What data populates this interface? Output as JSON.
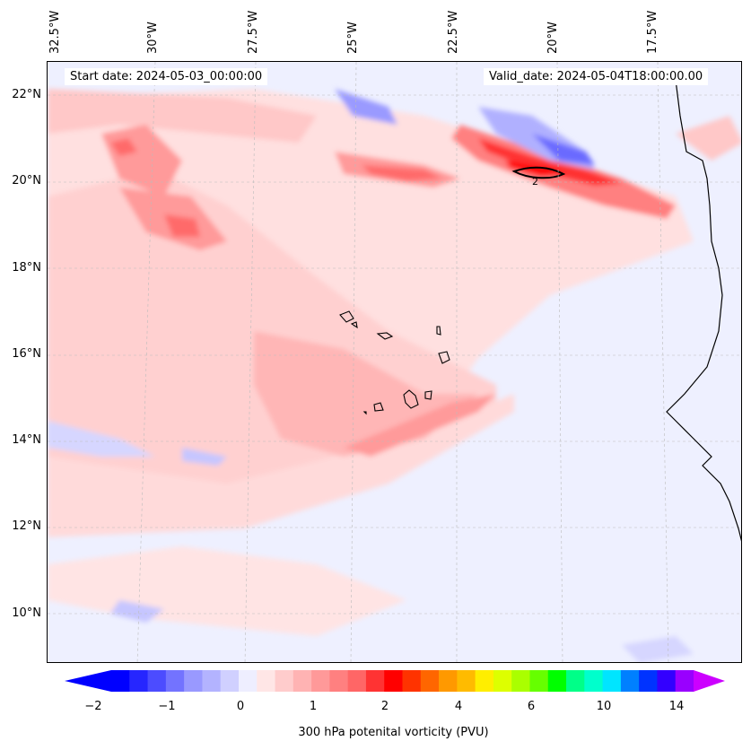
{
  "map": {
    "start_date": "Start date: 2024-05-03_00:00:00",
    "valid_date": "Valid_date: 2024-05-04T18:00:00.00",
    "longitude_labels": [
      "32.5°W",
      "30°W",
      "27.5°W",
      "25°W",
      "22.5°W",
      "20°W",
      "17.5°W"
    ],
    "latitude_labels": [
      "22°N",
      "20°N",
      "18°N",
      "16°N",
      "14°N",
      "12°N",
      "10°N"
    ],
    "contour_label": "2",
    "colors": {
      "negative_strong": "#0000ff",
      "negative_light": "#d0d0ff",
      "near_zero": "#eef0ff",
      "positive_light": "#ffdcdc",
      "positive_medium": "#ff9a9a",
      "positive_strong": "#ff2020"
    }
  },
  "colorbar": {
    "label": "300 hPa potenital vorticity (PVU)",
    "tick_labels": [
      "−2",
      "−1",
      "0",
      "1",
      "2",
      "4",
      "6",
      "10",
      "14"
    ],
    "colors": [
      "#0000ff",
      "#2626ff",
      "#4c4cff",
      "#7373ff",
      "#9999ff",
      "#b3b3ff",
      "#d0d0ff",
      "#eeeeff",
      "#ffe6e6",
      "#ffcccc",
      "#ffb3b3",
      "#ff9999",
      "#ff8080",
      "#ff6666",
      "#ff3333",
      "#ff0000",
      "#ff3300",
      "#ff6600",
      "#ff9900",
      "#ffbb00",
      "#ffee00",
      "#ddff00",
      "#aaff00",
      "#66ff00",
      "#00ff00",
      "#00ff88",
      "#00ffcc",
      "#00e5ff",
      "#0080ff",
      "#0033ff",
      "#3300ff",
      "#9900ff"
    ],
    "extend_low_color": "#0000ff",
    "extend_high_color": "#cc00ff"
  }
}
